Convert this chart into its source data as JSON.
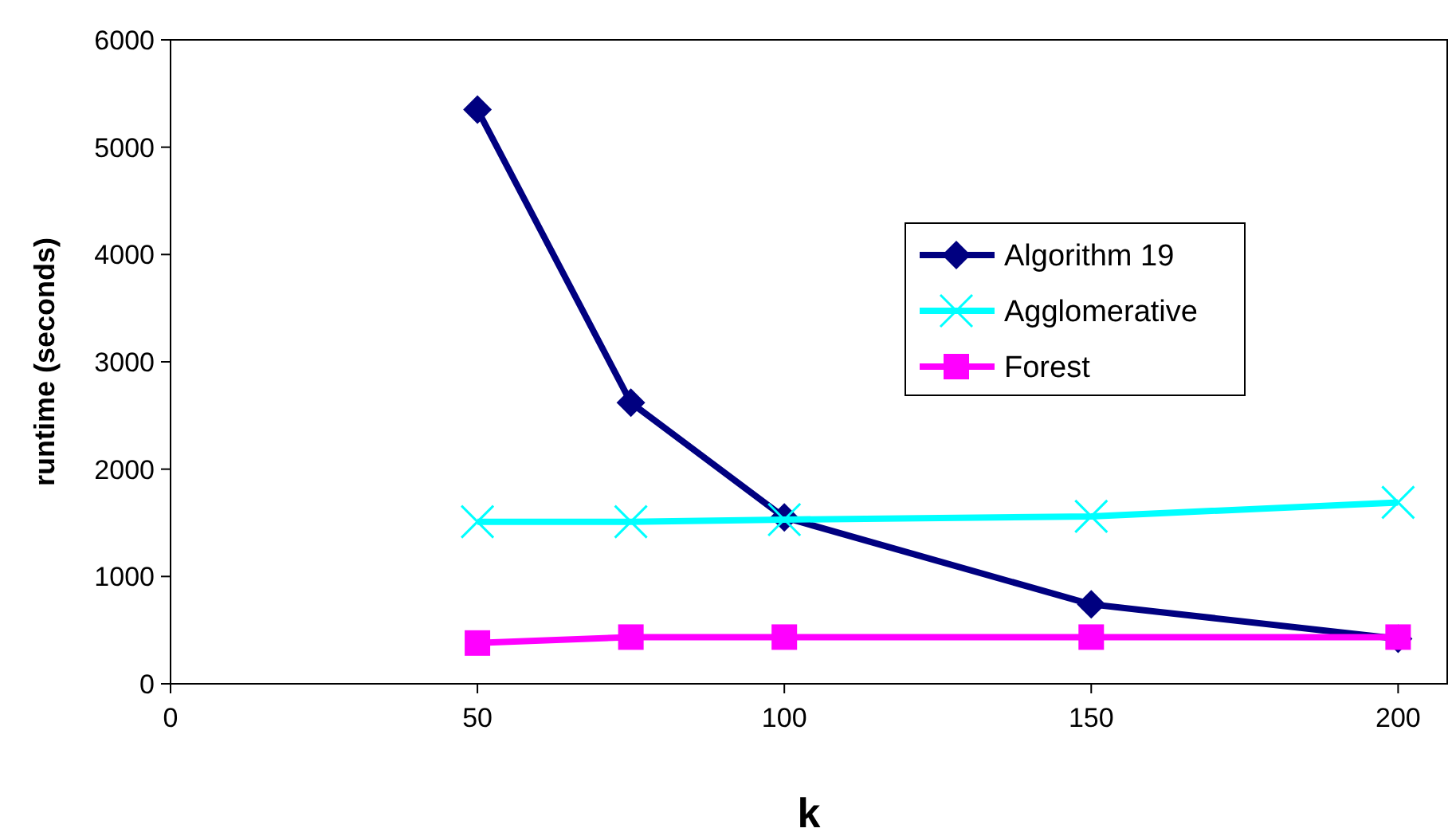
{
  "chart_data": {
    "type": "line",
    "xlabel": "k",
    "ylabel": "runtime (seconds)",
    "x": [
      50,
      75,
      100,
      150,
      200
    ],
    "series": [
      {
        "name": "Algorithm 19",
        "color": "#000080",
        "marker": "diamond",
        "values": [
          5350,
          2620,
          1550,
          740,
          420
        ]
      },
      {
        "name": "Agglomerative",
        "color": "#00ffff",
        "marker": "cross",
        "values": [
          1510,
          1510,
          1530,
          1560,
          1690
        ]
      },
      {
        "name": "Forest",
        "color": "#ff00ff",
        "marker": "square",
        "values": [
          380,
          435,
          435,
          435,
          435
        ]
      }
    ],
    "xlim": [
      0,
      208
    ],
    "xticks": [
      0,
      50,
      100,
      150,
      200
    ],
    "ylim": [
      0,
      6000
    ],
    "yticks": [
      0,
      1000,
      2000,
      3000,
      4000,
      5000,
      6000
    ],
    "grid": false,
    "legend": "right",
    "line_style": "solid"
  }
}
